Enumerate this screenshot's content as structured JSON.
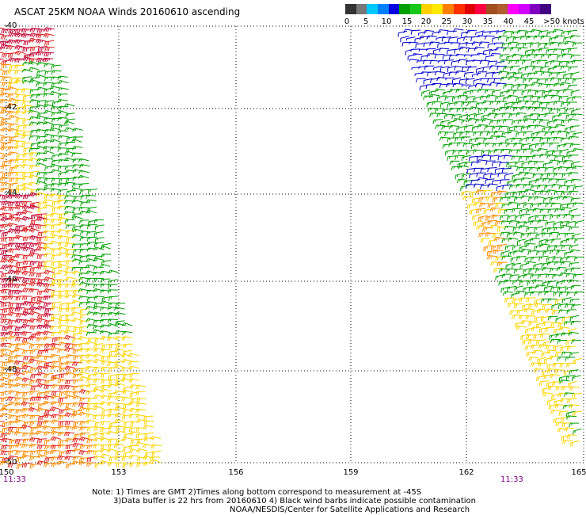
{
  "title": "ASCAT 25KM NOAA Winds 20160610 ascending",
  "legend": {
    "labels": [
      "0",
      "5",
      "10",
      "15",
      "20",
      "25",
      "30",
      "35",
      "40",
      "45",
      ">50 knots"
    ],
    "colors": [
      "#333333",
      "#777777",
      "#00c8ff",
      "#0080ff",
      "#0000e0",
      "#00a000",
      "#18c818",
      "#ffd000",
      "#ffe800",
      "#ff8000",
      "#ff3000",
      "#e00000",
      "#ff0040",
      "#a05020",
      "#b06030",
      "#ff00ff",
      "#d000ff",
      "#8000c0",
      "#400080"
    ]
  },
  "axes": {
    "x_labels": [
      "150",
      "153",
      "156",
      "159",
      "162",
      "165"
    ],
    "y_labels": [
      "-40",
      "-42",
      "-44",
      "-46",
      "-48",
      "-50"
    ]
  },
  "times": {
    "left": "11:33",
    "right": "11:33"
  },
  "notes": {
    "line1": "Note:  1) Times are GMT  2)Times along bottom correspond to measurement at -45S",
    "line2": "3)Data buffer is 22 hrs from 20160610  4) Black wind barbs indicate possible contamination",
    "line3": "NOAA/NESDIS/Center for Satellite Applications and Research"
  }
}
